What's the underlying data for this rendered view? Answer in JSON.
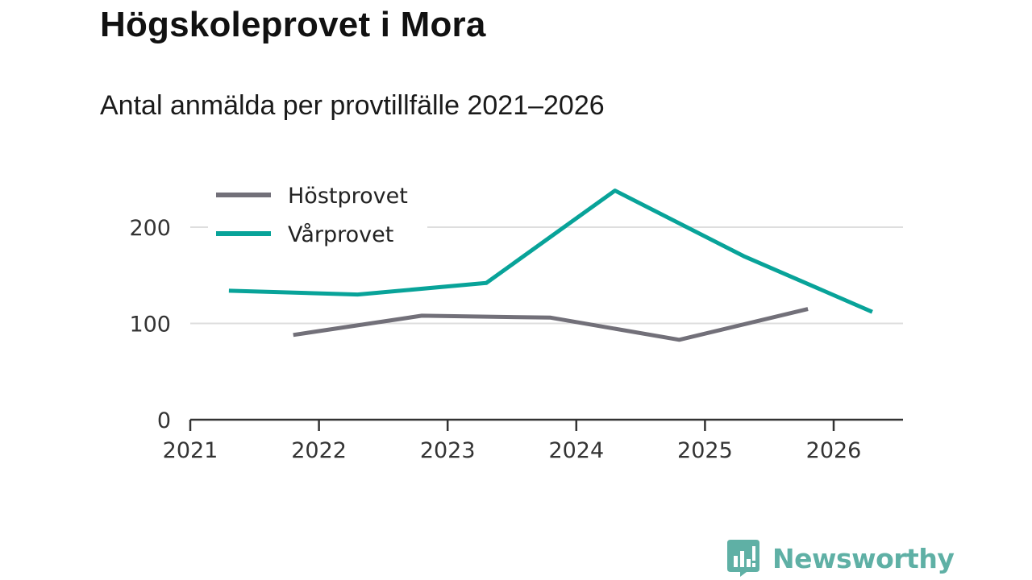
{
  "header": {
    "title": "Högskoleprovet i Mora",
    "subtitle": "Antal anmälda per provtillfälle 2021–2026"
  },
  "brand": {
    "name": "Newsworthy",
    "logo_icon": "bar-chart-speech-bubble-icon",
    "color": "#5fb0a5"
  },
  "chart_data": {
    "type": "line",
    "title": "Högskoleprovet i Mora",
    "subtitle": "Antal anmälda per provtillfälle 2021–2026",
    "xlabel": "",
    "ylabel": "",
    "xlim": [
      2021,
      2026.55
    ],
    "ylim": [
      0,
      250
    ],
    "x_ticks": [
      2021,
      2022,
      2023,
      2024,
      2025,
      2026
    ],
    "x_tick_labels": [
      "2021",
      "2022",
      "2023",
      "2024",
      "2025",
      "2026"
    ],
    "y_ticks": [
      0,
      100,
      200
    ],
    "y_tick_labels": [
      "0",
      "100",
      "200"
    ],
    "grid": true,
    "legend_position": "top-left",
    "series": [
      {
        "name": "Höstprovet",
        "color": "#727079",
        "x": [
          2021.8,
          2022.8,
          2023.8,
          2024.8,
          2025.8
        ],
        "values": [
          88,
          108,
          106,
          83,
          115
        ]
      },
      {
        "name": "Vårprovet",
        "color": "#08a399",
        "x": [
          2021.3,
          2022.3,
          2023.3,
          2024.3,
          2025.3,
          2026.3
        ],
        "values": [
          134,
          130,
          142,
          238,
          170,
          112
        ]
      }
    ]
  }
}
